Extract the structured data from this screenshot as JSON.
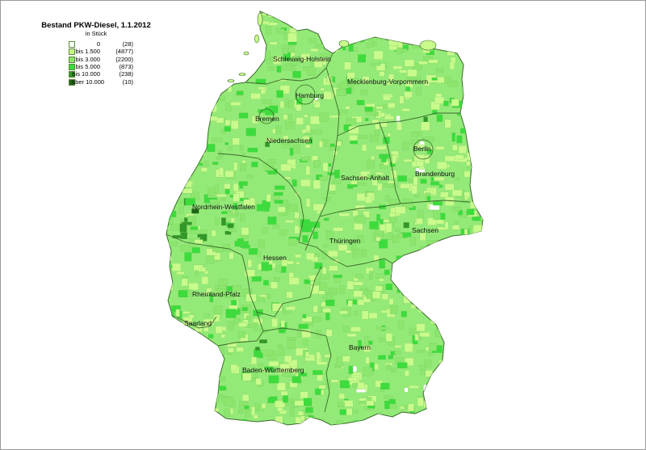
{
  "legend": {
    "title": "Bestand PKW-Diesel, 1.1.2012",
    "unit": "in Stück",
    "classes": [
      {
        "label": "0",
        "count": "(28)",
        "color": "#ffffff"
      },
      {
        "label": "bis 1.500",
        "count": "(4877)",
        "color": "#c8fa8c"
      },
      {
        "label": "bis 3.000",
        "count": "(2200)",
        "color": "#8ce66e"
      },
      {
        "label": "bis 5.000",
        "count": "(873)",
        "color": "#3cdc3c"
      },
      {
        "label": "bis 10.000",
        "count": "(238)",
        "color": "#329628"
      },
      {
        "label": "über 10.000",
        "count": "(10)",
        "color": "#1e6414"
      }
    ]
  },
  "states": [
    "Schleswig-Holstein",
    "Mecklenburg-Vorpommern",
    "Hamburg",
    "Bremen",
    "Niedersachsen",
    "Berlin",
    "Brandenburg",
    "Sachsen-Anhalt",
    "Nordrhein-Westfalen",
    "Sachsen",
    "Thüringen",
    "Hessen",
    "Rheinland-Pfalz",
    "Saarland",
    "Bayern",
    "Baden-Württemberg"
  ]
}
